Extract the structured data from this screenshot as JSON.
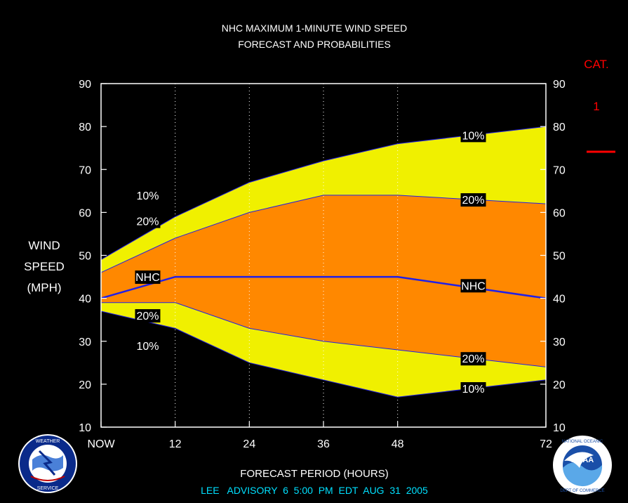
{
  "chart_data": {
    "type": "area",
    "title": [
      "NHC MAXIMUM 1-MINUTE WIND SPEED",
      "FORECAST AND PROBABILITIES"
    ],
    "ylabel": [
      "WIND",
      "SPEED",
      "(MPH)"
    ],
    "xlabel": "FORECAST PERIOD (HOURS)",
    "advisory": "LEE   ADVISORY  6  5:00  PM  EDT  AUG  31  2005",
    "category_header": "CAT.",
    "category_value": "1",
    "xlim": [
      0,
      72
    ],
    "ylim": [
      10,
      90
    ],
    "y_ticks": [
      10,
      20,
      30,
      40,
      50,
      60,
      70,
      80,
      90
    ],
    "x_ticks": [
      {
        "value": 0,
        "label": "NOW"
      },
      {
        "value": 12,
        "label": "12"
      },
      {
        "value": 24,
        "label": "24"
      },
      {
        "value": 36,
        "label": "36"
      },
      {
        "value": 48,
        "label": "48"
      },
      {
        "value": 72,
        "label": "72"
      }
    ],
    "vertical_dotted_gridlines_at": [
      12,
      24,
      36,
      48
    ],
    "x": [
      0,
      12,
      24,
      36,
      48,
      72
    ],
    "series": [
      {
        "name": "10%",
        "role": "upper",
        "values": [
          49,
          59,
          67,
          72,
          76,
          80
        ]
      },
      {
        "name": "20%",
        "role": "upper",
        "values": [
          46,
          54,
          60,
          64,
          64,
          62
        ]
      },
      {
        "name": "NHC",
        "role": "forecast",
        "values": [
          40,
          45,
          45,
          45,
          45,
          40
        ]
      },
      {
        "name": "20%",
        "role": "lower",
        "values": [
          39,
          39,
          33,
          30,
          28,
          24
        ]
      },
      {
        "name": "10%",
        "role": "lower",
        "values": [
          37,
          33,
          25,
          21,
          17,
          21
        ]
      }
    ],
    "line_labels": [
      {
        "text": "10%",
        "x": 6.3,
        "y": 64
      },
      {
        "text": "20%",
        "x": 6.3,
        "y": 58
      },
      {
        "text": "NHC",
        "x": 6.3,
        "y": 45
      },
      {
        "text": "20%",
        "x": 6.3,
        "y": 36
      },
      {
        "text": "10%",
        "x": 6.3,
        "y": 29
      },
      {
        "text": "10%",
        "x": 59,
        "y": 78
      },
      {
        "text": "20%",
        "x": 59,
        "y": 63
      },
      {
        "text": "NHC",
        "x": 59,
        "y": 43
      },
      {
        "text": "20%",
        "x": 59,
        "y": 26
      },
      {
        "text": "10%",
        "x": 59,
        "y": 19
      }
    ],
    "colors": {
      "background": "#000000",
      "outer_band": "#f0f000",
      "inner_band": "#ff8800",
      "forecast_line": "#2020e8",
      "band_edge": "#2020e8",
      "text": "#ffffff",
      "footer_text": "#00e0ff",
      "category_text": "#ff0000",
      "label_box": "#000000"
    }
  },
  "logos": {
    "nws": {
      "text": "NATIONAL WEATHER SERVICE",
      "icon": "nws-logo-icon"
    },
    "noaa": {
      "text": "NOAA",
      "ring_text": "NATIONAL OCEANIC AND ATMOSPHERIC ADMINISTRATION · U.S. DEPARTMENT OF COMMERCE",
      "icon": "noaa-logo-icon"
    }
  }
}
